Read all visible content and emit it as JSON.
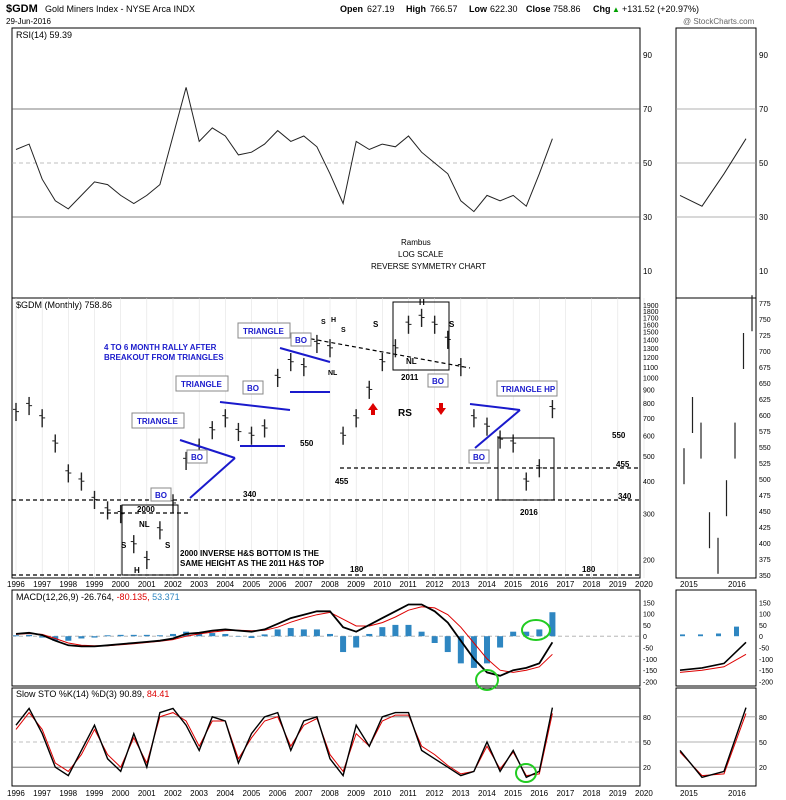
{
  "header": {
    "symbol": "$GDM",
    "name": "Gold Miners Index - NYSE Arca INDX",
    "date": "29-Jun-2016",
    "open_label": "Open",
    "open": "627.19",
    "high_label": "High",
    "high": "766.57",
    "low_label": "Low",
    "low": "622.30",
    "close_label": "Close",
    "close": "758.86",
    "chg_label": "Chg",
    "chg": "+131.52 (+20.97%)",
    "arrow": "▲",
    "watermark": "@ StockCharts.com"
  },
  "panels": {
    "rsi_legend": "RSI(14) 59.39",
    "price_legend": "$GDM (Monthly) 758.86",
    "macd_legend_a": "MACD(12,26,9) -26.764,",
    "macd_legend_b": "-80.135,",
    "macd_legend_c": "53.371",
    "sto_legend_a": "Slow STO %K(14) %D(3) 90.89,",
    "sto_legend_b": "84.41"
  },
  "annotations": {
    "rambus": "Rambus",
    "log_scale": "LOG SCALE",
    "reverse_symmetry": "REVERSE SYMMETRY CHART",
    "rally_1": "4 TO 6 MONTH RALLY AFTER",
    "rally_2": "BREAKOUT FROM TRIANGLES",
    "triangle": "TRIANGLE",
    "triangle_hp": "TRIANGLE HP",
    "bo": "BO",
    "h": "H",
    "s": "S",
    "nl": "NL",
    "rs": "RS",
    "y2000": "2000",
    "y2011": "2011",
    "y2016": "2016",
    "l550": "550",
    "l340": "340",
    "l455": "455",
    "l180": "180",
    "note_1": "2000 INVERSE H&S BOTTOM IS THE",
    "note_2": "SAME HEIGHT AS THE 2011 H&S TOP"
  },
  "colors": {
    "blue": "#1a1acc",
    "red": "#dd0000",
    "green": "#22cc22",
    "macd_hist": "#2e86c1",
    "grid": "#999999",
    "bars": "#222222"
  },
  "chart_data": [
    {
      "type": "line",
      "title": "RSI(14)",
      "x_range": [
        1996,
        2020
      ],
      "ylim": [
        0,
        100
      ],
      "ticks": [
        10,
        30,
        50,
        70,
        90
      ],
      "x": [
        1996.0,
        1996.5,
        1997.0,
        1997.5,
        1998.0,
        1998.5,
        1999.0,
        1999.5,
        2000.0,
        2000.5,
        2001.0,
        2001.5,
        2002.0,
        2002.5,
        2003.0,
        2003.5,
        2004.0,
        2004.5,
        2005.0,
        2005.5,
        2006.0,
        2006.5,
        2007.0,
        2007.5,
        2008.0,
        2008.5,
        2009.0,
        2009.5,
        2010.0,
        2010.5,
        2011.0,
        2011.5,
        2012.0,
        2012.5,
        2013.0,
        2013.5,
        2014.0,
        2014.5,
        2015.0,
        2015.5,
        2016.0,
        2016.5
      ],
      "values": [
        55,
        57,
        44,
        36,
        33,
        38,
        43,
        42,
        38,
        35,
        38,
        42,
        60,
        78,
        58,
        63,
        60,
        53,
        54,
        57,
        62,
        58,
        60,
        56,
        46,
        35,
        58,
        55,
        57,
        56,
        60,
        54,
        50,
        46,
        36,
        32,
        38,
        36,
        38,
        34,
        46,
        59
      ]
    },
    {
      "type": "bar",
      "title": "$GDM (Monthly)",
      "scale": "log",
      "x_range": [
        1996,
        2020
      ],
      "ylim": [
        170,
        1950
      ],
      "ticks": [
        200,
        300,
        400,
        500,
        600,
        700,
        800,
        900,
        1000,
        1100,
        1200,
        1300,
        1400,
        1500,
        1600,
        1700,
        1800,
        1900
      ],
      "x": [
        1996.0,
        1996.5,
        1997.0,
        1997.5,
        1998.0,
        1998.5,
        1999.0,
        1999.5,
        2000.0,
        2000.5,
        2001.0,
        2001.5,
        2002.0,
        2002.5,
        2003.0,
        2003.5,
        2004.0,
        2004.5,
        2005.0,
        2005.5,
        2006.0,
        2006.5,
        2007.0,
        2007.5,
        2008.0,
        2008.5,
        2009.0,
        2009.5,
        2010.0,
        2010.5,
        2011.0,
        2011.5,
        2012.0,
        2012.5,
        2013.0,
        2013.5,
        2014.0,
        2014.5,
        2015.0,
        2015.5,
        2016.0,
        2016.5
      ],
      "values": [
        740,
        780,
        700,
        560,
        430,
        400,
        340,
        310,
        300,
        230,
        200,
        260,
        330,
        480,
        540,
        630,
        700,
        620,
        600,
        640,
        1000,
        1150,
        1100,
        1350,
        1300,
        600,
        700,
        900,
        1150,
        1300,
        1600,
        1700,
        1600,
        1400,
        1100,
        700,
        650,
        580,
        560,
        400,
        450,
        759
      ],
      "levels": [
        550,
        340,
        455,
        180
      ]
    },
    {
      "type": "line",
      "title": "MACD(12,26,9)",
      "x_range": [
        1996,
        2020
      ],
      "ylim": [
        -220,
        160
      ],
      "ticks": [
        150,
        100,
        50,
        0,
        -50,
        -100,
        -150,
        -200
      ],
      "x": [
        1996.0,
        1996.5,
        1997.0,
        1997.5,
        1998.0,
        1998.5,
        1999.0,
        1999.5,
        2000.0,
        2000.5,
        2001.0,
        2001.5,
        2002.0,
        2002.5,
        2003.0,
        2003.5,
        2004.0,
        2004.5,
        2005.0,
        2005.5,
        2006.0,
        2006.5,
        2007.0,
        2007.5,
        2008.0,
        2008.5,
        2009.0,
        2009.5,
        2010.0,
        2010.5,
        2011.0,
        2011.5,
        2012.0,
        2012.5,
        2013.0,
        2013.5,
        2014.0,
        2014.5,
        2015.0,
        2015.5,
        2016.0,
        2016.5
      ],
      "series": [
        {
          "name": "MACD",
          "values": [
            10,
            15,
            5,
            -20,
            -40,
            -45,
            -45,
            -40,
            -35,
            -30,
            -25,
            -20,
            -10,
            10,
            15,
            25,
            30,
            25,
            20,
            30,
            55,
            80,
            95,
            110,
            110,
            40,
            20,
            50,
            80,
            110,
            140,
            140,
            110,
            60,
            -20,
            -100,
            -160,
            -175,
            -150,
            -140,
            -120,
            -27
          ]
        },
        {
          "name": "Signal",
          "values": [
            8,
            12,
            8,
            -10,
            -30,
            -40,
            -42,
            -42,
            -38,
            -33,
            -28,
            -22,
            -15,
            0,
            10,
            18,
            25,
            26,
            24,
            26,
            40,
            62,
            80,
            95,
            105,
            75,
            45,
            45,
            60,
            85,
            115,
            130,
            125,
            95,
            40,
            -30,
            -100,
            -150,
            -160,
            -150,
            -135,
            -80
          ]
        }
      ]
    },
    {
      "type": "line",
      "title": "Slow STO %K(14) %D(3)",
      "x_range": [
        1996,
        2020
      ],
      "ylim": [
        0,
        100
      ],
      "ticks": [
        20,
        50,
        80
      ],
      "x": [
        1996.0,
        1996.5,
        1997.0,
        1997.5,
        1998.0,
        1998.5,
        1999.0,
        1999.5,
        2000.0,
        2000.5,
        2001.0,
        2001.5,
        2002.0,
        2002.5,
        2003.0,
        2003.5,
        2004.0,
        2004.5,
        2005.0,
        2005.5,
        2006.0,
        2006.5,
        2007.0,
        2007.5,
        2008.0,
        2008.5,
        2009.0,
        2009.5,
        2010.0,
        2010.5,
        2011.0,
        2011.5,
        2012.0,
        2012.5,
        2013.0,
        2013.5,
        2014.0,
        2014.5,
        2015.0,
        2015.5,
        2016.0,
        2016.5
      ],
      "series": [
        {
          "name": "%K",
          "values": [
            70,
            90,
            60,
            20,
            10,
            40,
            70,
            30,
            15,
            60,
            20,
            85,
            90,
            70,
            40,
            80,
            75,
            25,
            60,
            80,
            85,
            40,
            75,
            80,
            30,
            10,
            70,
            45,
            80,
            85,
            85,
            40,
            30,
            20,
            10,
            15,
            50,
            15,
            40,
            8,
            15,
            91
          ]
        },
        {
          "name": "%D",
          "values": [
            65,
            85,
            65,
            25,
            15,
            35,
            65,
            35,
            20,
            55,
            25,
            80,
            85,
            75,
            45,
            75,
            75,
            30,
            55,
            75,
            80,
            45,
            70,
            78,
            35,
            15,
            60,
            45,
            75,
            82,
            82,
            45,
            35,
            22,
            12,
            15,
            45,
            18,
            38,
            10,
            12,
            84
          ]
        }
      ]
    }
  ],
  "axis": {
    "years": [
      "1996",
      "1997",
      "1998",
      "1999",
      "2000",
      "2001",
      "2002",
      "2003",
      "2004",
      "2005",
      "2006",
      "2007",
      "2008",
      "2009",
      "2010",
      "2011",
      "2012",
      "2013",
      "2014",
      "2015",
      "2016",
      "2017",
      "2018",
      "2019",
      "2020"
    ],
    "zoom_years": [
      "2015",
      "2016"
    ],
    "zoom_price_ticks": [
      "775",
      "750",
      "725",
      "700",
      "675",
      "650",
      "625",
      "600",
      "575",
      "550",
      "525",
      "500",
      "475",
      "450",
      "425",
      "400",
      "375",
      "350"
    ]
  }
}
